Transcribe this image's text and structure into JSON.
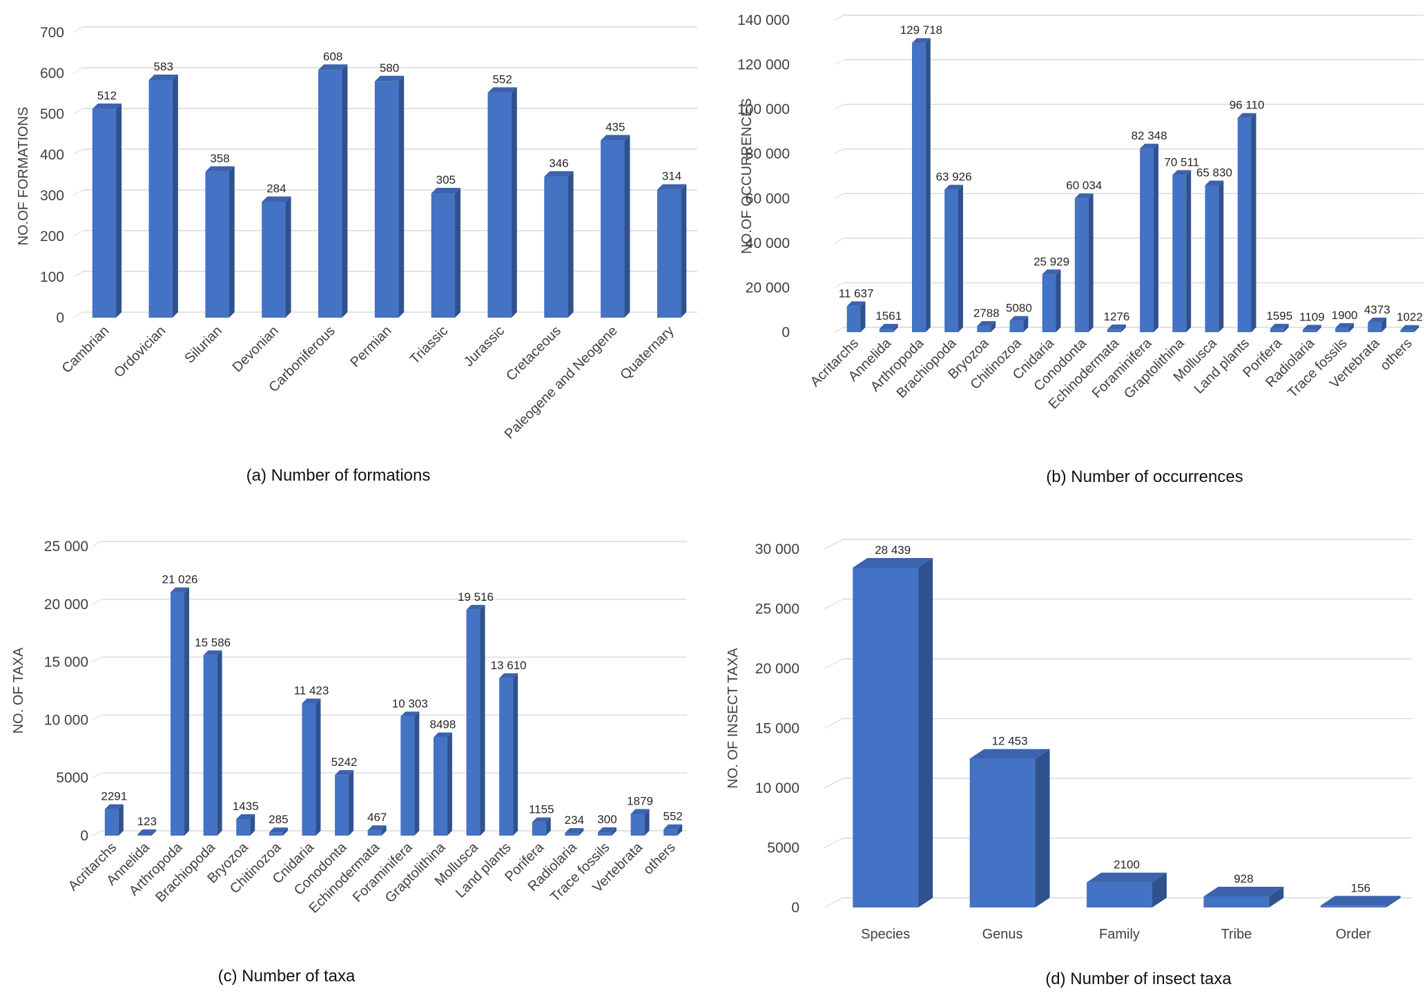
{
  "colors": {
    "bar_front": "#4472C4",
    "bar_side": "#2F528F",
    "bar_top": "#3C63AD",
    "grid": "#d9d9d9"
  },
  "chart_data": [
    {
      "type": "bar",
      "caption": "(a)  Number of formations",
      "ylabel": "NO.OF  FORMATIONS",
      "ylim": [
        0,
        700
      ],
      "yticks": [
        "0",
        "100",
        "200",
        "300",
        "400",
        "500",
        "600",
        "700"
      ],
      "categories": [
        "Cambrian",
        "Ordovician",
        "Silurian",
        "Devonian",
        "Carboniferous",
        "Permian",
        "Triassic",
        "Jurassic",
        "Cretaceous",
        "Paleogene and Neogene",
        "Quaternary"
      ],
      "values": [
        512,
        583,
        358,
        284,
        608,
        580,
        305,
        552,
        346,
        435,
        314
      ],
      "value_labels": [
        "512",
        "583",
        "358",
        "284",
        "608",
        "580",
        "305",
        "552",
        "346",
        "435",
        "314"
      ],
      "grid": true
    },
    {
      "type": "bar",
      "caption": "(b) Number of occurrences",
      "ylabel": "NO.OF OCCURRENCES",
      "ylim": [
        0,
        140000
      ],
      "yticks": [
        "0",
        "20 000",
        "40 000",
        "60 000",
        "80 000",
        "100 000",
        "120 000",
        "140 000"
      ],
      "categories": [
        "Acritarchs",
        "Annelida",
        "Arthropoda",
        "Brachiopoda",
        "Bryozoa",
        "Chitinozoa",
        "Cnidaria",
        "Conodonta",
        "Echinodermata",
        "Foraminifera",
        "Graptolithina",
        "Mollusca",
        "Land plants",
        "Porifera",
        "Radiolaria",
        "Trace fossils",
        "Vertebrata",
        "others"
      ],
      "values": [
        11637,
        1561,
        129718,
        63926,
        2788,
        5080,
        25929,
        60034,
        1276,
        82348,
        70511,
        65830,
        96110,
        1595,
        1109,
        1900,
        4373,
        1022
      ],
      "value_labels": [
        "11 637",
        "1561",
        "129 718",
        "63 926",
        "2788",
        "5080",
        "25 929",
        "60 034",
        "1276",
        "82 348",
        "70 511",
        "65 830",
        "96 110",
        "1595",
        "1109",
        "1900",
        "4373",
        "1022"
      ],
      "grid": true
    },
    {
      "type": "bar",
      "caption": "(c) Number of taxa",
      "ylabel": "NO. OF TAXA",
      "ylim": [
        0,
        25000
      ],
      "yticks": [
        "0",
        "5000",
        "10 000",
        "15 000",
        "20 000",
        "25 000"
      ],
      "categories": [
        "Acritarchs",
        "Annelida",
        "Arthropoda",
        "Brachiopoda",
        "Bryozoa",
        "Chitinozoa",
        "Cnidaria",
        "Conodonta",
        "Echinodermata",
        "Foraminifera",
        "Graptolithina",
        "Mollusca",
        "Land plants",
        "Porifera",
        "Radiolaria",
        "Trace fossils",
        "Vertebrata",
        "others"
      ],
      "values": [
        2291,
        123,
        21026,
        15586,
        1435,
        285,
        11423,
        5242,
        467,
        10303,
        8498,
        19516,
        13610,
        1155,
        234,
        300,
        1879,
        552
      ],
      "value_labels": [
        "2291",
        "123",
        "21 026",
        "15 586",
        "1435",
        "285",
        "11 423",
        "5242",
        "467",
        "10 303",
        "8498",
        "19 516",
        "13 610",
        "1155",
        "234",
        "300",
        "1879",
        "552"
      ],
      "grid": true
    },
    {
      "type": "bar",
      "caption": "(d) Number of insect taxa",
      "ylabel": "NO. OF INSECT TAXA",
      "ylim": [
        0,
        30000
      ],
      "yticks": [
        "0",
        "5000",
        "10 000",
        "15 000",
        "20 000",
        "25 000",
        "30 000"
      ],
      "categories": [
        "Species",
        "Genus",
        "Family",
        "Tribe",
        "Order"
      ],
      "values": [
        28439,
        12453,
        2100,
        928,
        156
      ],
      "value_labels": [
        "28 439",
        "12 453",
        "2100",
        "928",
        "156"
      ],
      "grid": true
    }
  ]
}
